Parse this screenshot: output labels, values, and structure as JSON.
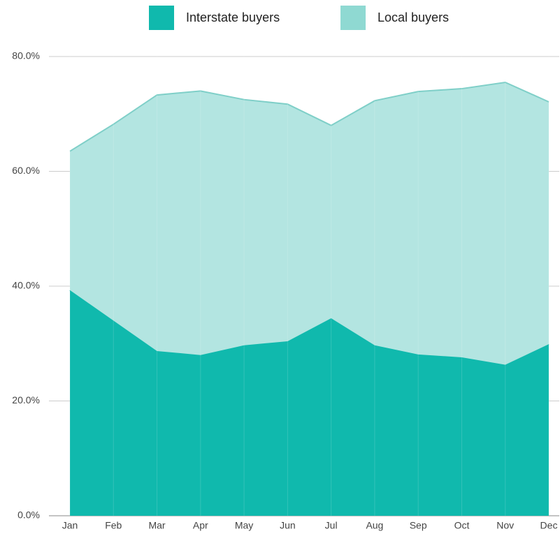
{
  "chart_data": {
    "type": "stacked_area",
    "categories": [
      "Jan",
      "Feb",
      "Mar",
      "Apr",
      "May",
      "Jun",
      "Jul",
      "Aug",
      "Sep",
      "Oct",
      "Nov",
      "Dec"
    ],
    "series": [
      {
        "name": "Interstate buyers",
        "color": "#10b9ad",
        "values": [
          39.3,
          34.0,
          28.7,
          28.0,
          29.7,
          30.4,
          34.4,
          29.7,
          28.1,
          27.6,
          26.3,
          29.9
        ]
      },
      {
        "name": "Local buyers",
        "color": "#b3e5e1",
        "values": [
          24.2,
          34.2,
          44.6,
          46.0,
          42.8,
          41.3,
          33.6,
          42.6,
          45.8,
          46.8,
          49.2,
          42.2
        ]
      }
    ],
    "ylim": [
      0,
      80
    ],
    "yticks": [
      {
        "value": 0,
        "label": "0.0%"
      },
      {
        "value": 20,
        "label": "20.0%"
      },
      {
        "value": 40,
        "label": "40.0%"
      },
      {
        "value": 60,
        "label": "60.0%"
      },
      {
        "value": 80,
        "label": "80.0%"
      }
    ],
    "grid": true,
    "stacked": true,
    "legend": "top"
  }
}
